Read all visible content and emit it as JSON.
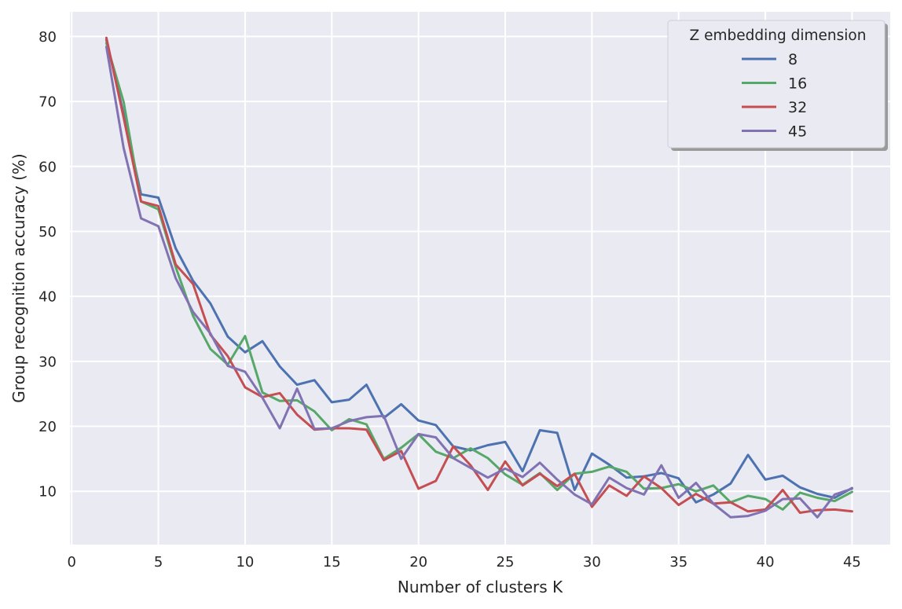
{
  "chart_data": {
    "type": "line",
    "title": "",
    "xlabel": "Number of clusters K",
    "ylabel": "Group recognition accuracy (%)",
    "xlim": [
      -0.1,
      47.2
    ],
    "ylim": [
      1.8,
      83.8
    ],
    "x_ticks": [
      0,
      5,
      10,
      15,
      20,
      25,
      30,
      35,
      40,
      45
    ],
    "y_ticks": [
      10,
      20,
      30,
      40,
      50,
      60,
      70,
      80
    ],
    "grid": true,
    "background": "#eaeaf2",
    "legend": {
      "title": "Z embedding dimension",
      "position": "top-right"
    },
    "x": [
      2,
      3,
      4,
      5,
      6,
      7,
      8,
      9,
      10,
      11,
      12,
      13,
      14,
      15,
      16,
      17,
      18,
      19,
      20,
      21,
      22,
      23,
      24,
      25,
      26,
      27,
      28,
      29,
      30,
      31,
      32,
      33,
      34,
      35,
      36,
      37,
      38,
      39,
      40,
      41,
      42,
      43,
      44,
      45
    ],
    "series": [
      {
        "name": "8",
        "color": "#4c72b0",
        "values": [
          79.5,
          68.0,
          55.7,
          55.2,
          47.4,
          42.4,
          38.9,
          33.8,
          31.4,
          33.1,
          29.2,
          26.4,
          27.1,
          23.7,
          24.1,
          26.4,
          21.3,
          23.4,
          20.9,
          20.2,
          16.9,
          16.3,
          17.1,
          17.6,
          13.1,
          19.4,
          19.0,
          10.2,
          15.8,
          14.1,
          12.1,
          12.3,
          12.8,
          12.0,
          8.3,
          9.5,
          11.2,
          15.6,
          11.8,
          12.4,
          10.6,
          9.6,
          9.0,
          10.5
        ]
      },
      {
        "name": "16",
        "color": "#55a868",
        "values": [
          79.0,
          69.9,
          54.6,
          53.4,
          44.5,
          37.0,
          31.9,
          29.5,
          33.9,
          25.2,
          23.9,
          24.0,
          22.3,
          19.4,
          21.1,
          20.3,
          15.0,
          16.7,
          18.8,
          16.1,
          15.1,
          16.6,
          15.1,
          12.6,
          11.0,
          12.8,
          10.2,
          12.7,
          13.0,
          13.8,
          13.0,
          10.4,
          10.5,
          11.1,
          10.0,
          10.9,
          8.3,
          9.3,
          8.8,
          7.2,
          9.8,
          9.0,
          8.5,
          9.9
        ]
      },
      {
        "name": "32",
        "color": "#c44e52",
        "values": [
          79.8,
          67.5,
          54.6,
          53.9,
          44.9,
          41.9,
          34.1,
          30.8,
          26.0,
          24.5,
          25.1,
          21.8,
          19.5,
          19.7,
          19.7,
          19.5,
          14.8,
          16.2,
          10.4,
          11.6,
          16.9,
          14.0,
          10.2,
          14.6,
          10.9,
          12.7,
          10.8,
          12.7,
          7.6,
          10.9,
          9.3,
          12.3,
          10.5,
          7.9,
          9.6,
          8.1,
          8.3,
          6.9,
          7.2,
          10.2,
          6.7,
          7.1,
          7.2,
          6.9
        ]
      },
      {
        "name": "45",
        "color": "#8172b2",
        "values": [
          78.4,
          62.8,
          52.0,
          50.8,
          42.8,
          37.6,
          34.3,
          29.3,
          28.4,
          24.4,
          19.7,
          25.8,
          19.6,
          19.7,
          20.8,
          21.4,
          21.6,
          15.0,
          18.8,
          18.3,
          15.1,
          13.6,
          12.1,
          13.5,
          12.2,
          14.4,
          11.8,
          9.5,
          8.0,
          12.1,
          10.5,
          9.5,
          14.0,
          9.0,
          11.3,
          8.1,
          6.0,
          6.2,
          7.0,
          8.8,
          8.9,
          6.0,
          9.5,
          10.4
        ]
      }
    ]
  }
}
